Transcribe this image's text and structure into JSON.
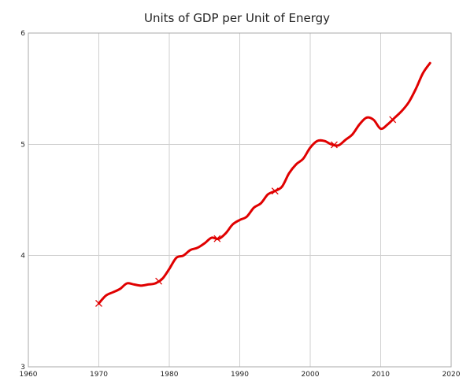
{
  "chart_data": {
    "type": "line",
    "title": "Units of GDP per Unit of Energy",
    "xlabel": "",
    "ylabel": "",
    "xlim": [
      1960,
      2020
    ],
    "ylim": [
      3,
      6
    ],
    "x_ticks": [
      "1960",
      "1970",
      "1980",
      "1990",
      "2000",
      "2010",
      "2020"
    ],
    "y_ticks": [
      "3",
      "4",
      "5",
      "6"
    ],
    "grid": true,
    "line_color": "#e00000",
    "series": [
      {
        "x": [
          1970,
          1971,
          1972,
          1973,
          1974,
          1975,
          1976,
          1977,
          1978,
          1979,
          1980,
          1981,
          1982,
          1983,
          1984,
          1985,
          1986,
          1987,
          1988,
          1989,
          1990,
          1991,
          1992,
          1993,
          1994,
          1995,
          1996,
          1997,
          1998,
          1999,
          2000,
          2001,
          2002,
          2003,
          2004,
          2005,
          2006,
          2007,
          2008,
          2009,
          2010,
          2011,
          2012,
          2013,
          2014,
          2015,
          2016,
          2017
        ],
        "values": [
          3.57,
          3.64,
          3.67,
          3.7,
          3.75,
          3.74,
          3.73,
          3.74,
          3.75,
          3.79,
          3.88,
          3.98,
          4.0,
          4.05,
          4.07,
          4.11,
          4.16,
          4.15,
          4.2,
          4.28,
          4.32,
          4.35,
          4.43,
          4.47,
          4.55,
          4.58,
          4.62,
          4.74,
          4.82,
          4.87,
          4.97,
          5.03,
          5.03,
          5.0,
          4.99,
          5.04,
          5.09,
          5.18,
          5.24,
          5.22,
          5.14,
          5.18,
          5.24,
          5.3,
          5.38,
          5.5,
          5.64,
          5.73
        ]
      }
    ],
    "markers_x": [
      1970,
      1978.5,
      1986.8,
      1995,
      2003.4,
      2011.7
    ]
  }
}
